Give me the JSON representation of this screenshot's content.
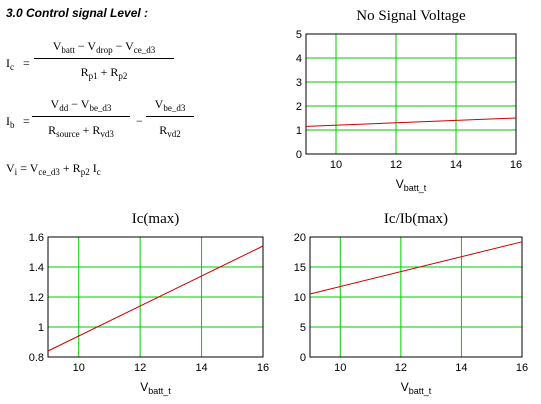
{
  "section": {
    "title": "3.0 Control signal Level :"
  },
  "equations": {
    "ic": {
      "lhs": "I",
      "lhs_sub": "c",
      "num": [
        [
          "V",
          "batt"
        ],
        [
          " − V",
          "drop"
        ],
        [
          " − V",
          "ce_d3"
        ]
      ],
      "den": [
        [
          "R",
          "p1"
        ],
        [
          " + R",
          "p2"
        ]
      ]
    },
    "ib": {
      "lhs": "I",
      "lhs_sub": "b",
      "num1": [
        [
          "V",
          "dd"
        ],
        [
          " − V",
          "be_d3"
        ]
      ],
      "den1": [
        [
          "R",
          "source"
        ],
        [
          " + R",
          "vd3"
        ]
      ],
      "op": "−",
      "num2": [
        [
          "V",
          "be_d3"
        ]
      ],
      "den2": [
        [
          "R",
          "vd2"
        ]
      ]
    },
    "vi": {
      "parts": [
        [
          "V",
          "i"
        ],
        [
          " = V",
          "ce_d3"
        ],
        [
          " + R",
          "p2"
        ],
        [
          " I",
          "c"
        ]
      ]
    }
  },
  "chart_data": [
    {
      "type": "line",
      "title": "No Signal Voltage",
      "xlabel": "V",
      "xlabel_sub": "batt_t",
      "ylabel": "",
      "xlim": [
        9,
        16
      ],
      "ylim": [
        0,
        5
      ],
      "xticks": [
        10,
        12,
        14,
        16
      ],
      "yticks": [
        0,
        1,
        2,
        3,
        4,
        5
      ],
      "grid": true,
      "series": [
        {
          "x": [
            9,
            16
          ],
          "y": [
            1.15,
            1.5
          ],
          "color": "#cc0000"
        }
      ]
    },
    {
      "type": "line",
      "title": "Ic(max)",
      "xlabel": "V",
      "xlabel_sub": "batt_t",
      "ylabel": "",
      "xlim": [
        9,
        16
      ],
      "ylim": [
        0.8,
        1.6
      ],
      "xticks": [
        10,
        12,
        14,
        16
      ],
      "yticks": [
        0.8,
        1,
        1.2,
        1.4,
        1.6
      ],
      "grid": true,
      "series": [
        {
          "x": [
            9,
            16
          ],
          "y": [
            0.84,
            1.54
          ],
          "color": "#cc0000"
        }
      ]
    },
    {
      "type": "line",
      "title": "Ic/Ib(max)",
      "xlabel": "V",
      "xlabel_sub": "batt_t",
      "ylabel": "",
      "xlim": [
        9,
        16
      ],
      "ylim": [
        0,
        20
      ],
      "xticks": [
        10,
        12,
        14,
        16
      ],
      "yticks": [
        0,
        5,
        10,
        15,
        20
      ],
      "grid": true,
      "series": [
        {
          "x": [
            9,
            16
          ],
          "y": [
            10.5,
            19.2
          ],
          "color": "#cc0000"
        }
      ]
    }
  ],
  "colors": {
    "grid": "#00cc00",
    "line": "#cc0000",
    "axis": "#000000"
  }
}
